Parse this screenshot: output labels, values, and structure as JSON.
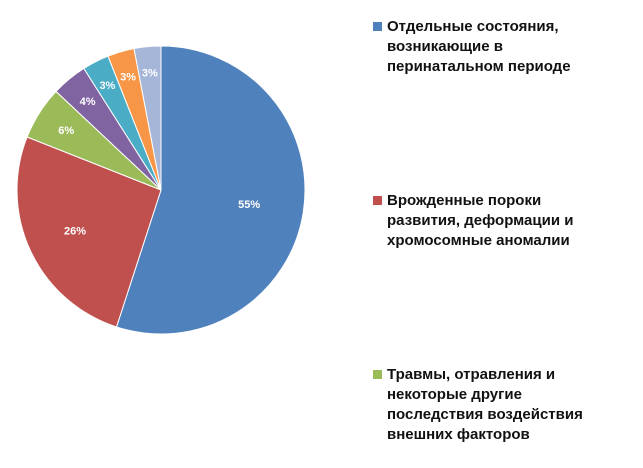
{
  "chart_data": {
    "type": "pie",
    "values": [
      55,
      26,
      6,
      4,
      3,
      3,
      3
    ],
    "labels": [
      "55%",
      "26%",
      "6%",
      "4%",
      "3%",
      "3%",
      "3%"
    ],
    "colors": [
      "#4f81bd",
      "#c0504d",
      "#9bbb59",
      "#8064a2",
      "#4bacc6",
      "#f79646",
      "#a5b6d8"
    ],
    "legend_placement": "right",
    "legend": [
      {
        "label": "Отдельные  состояния,\nвозникающие в\nперинатальном  периоде",
        "color": "#4f81bd"
      },
      {
        "label": "Врожденные  пороки\nразвития, деформации  и\nхромосомные  аномалии",
        "color": "#c0504d"
      },
      {
        "label": "Травмы, отравления  и\nнекоторые  другие\nпоследствия  воздействия\nвнешних  факторов",
        "color": "#9bbb59"
      }
    ]
  }
}
